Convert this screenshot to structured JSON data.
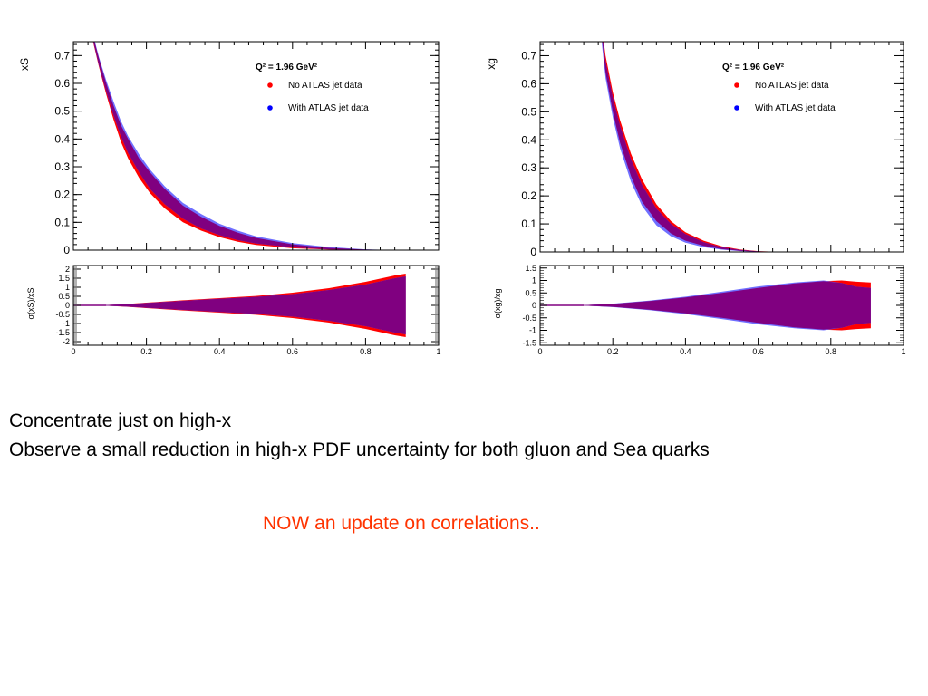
{
  "slide": {
    "line1": "Concentrate just on high-x",
    "line2": "Observe a small reduction in high-x PDF uncertainty for both gluon and Sea quarks",
    "note": "NOW an update on correlations..",
    "note_color": "#ff3300"
  },
  "colors": {
    "no_atlas": "#ff0000",
    "with_atlas": "#6f6fff",
    "overlap": "#800080"
  },
  "chart_data": [
    {
      "type": "area",
      "ylabel": "xS",
      "xlim": [
        0,
        1
      ],
      "ylim": [
        0,
        0.75
      ],
      "yticks": [
        "0",
        "0.1",
        "0.2",
        "0.3",
        "0.4",
        "0.5",
        "0.6",
        "0.7"
      ],
      "legend_title": "Q² = 1.96 GeV²",
      "legend_position": "top-right",
      "series": [
        {
          "name": "No ATLAS jet data",
          "color": "#ff0000",
          "x": [
            0.05,
            0.07,
            0.09,
            0.11,
            0.13,
            0.15,
            0.18,
            0.21,
            0.25,
            0.3,
            0.35,
            0.4,
            0.45,
            0.5,
            0.6,
            0.7,
            0.8,
            0.86
          ],
          "lower": [
            0.77,
            0.66,
            0.56,
            0.47,
            0.39,
            0.33,
            0.26,
            0.205,
            0.15,
            0.1,
            0.07,
            0.047,
            0.03,
            0.019,
            0.007,
            0.002,
            0.0003,
            0
          ],
          "upper": [
            0.79,
            0.69,
            0.6,
            0.52,
            0.45,
            0.4,
            0.33,
            0.28,
            0.22,
            0.16,
            0.12,
            0.087,
            0.063,
            0.044,
            0.021,
            0.008,
            0.002,
            0.0006
          ]
        },
        {
          "name": "With ATLAS jet data",
          "color": "#6f6fff",
          "x": [
            0.05,
            0.07,
            0.09,
            0.11,
            0.13,
            0.15,
            0.18,
            0.21,
            0.25,
            0.3,
            0.35,
            0.4,
            0.45,
            0.5,
            0.6,
            0.7,
            0.8,
            0.86
          ],
          "lower": [
            0.775,
            0.665,
            0.57,
            0.485,
            0.41,
            0.35,
            0.28,
            0.22,
            0.165,
            0.113,
            0.078,
            0.054,
            0.036,
            0.024,
            0.01,
            0.003,
            0.0006,
            0
          ],
          "upper": [
            0.795,
            0.695,
            0.61,
            0.535,
            0.465,
            0.41,
            0.345,
            0.29,
            0.23,
            0.17,
            0.13,
            0.095,
            0.07,
            0.05,
            0.025,
            0.011,
            0.003,
            0.0008
          ]
        }
      ],
      "ratio_panel": {
        "ylabel": "σ(xS)/xS",
        "ylim": [
          -2.2,
          2.2
        ],
        "yticks": [
          "-2",
          "-1.5",
          "-1",
          "-0.5",
          "0",
          "0.5",
          "1",
          "1.5",
          "2"
        ],
        "xticks": [
          "0",
          "0.2",
          "0.4",
          "0.6",
          "0.8",
          "1"
        ],
        "x": [
          0.09,
          0.15,
          0.2,
          0.3,
          0.4,
          0.5,
          0.6,
          0.7,
          0.8,
          0.88,
          0.91
        ],
        "no_atlas_band": [
          0.02,
          0.08,
          0.15,
          0.28,
          0.4,
          0.52,
          0.7,
          0.95,
          1.3,
          1.65,
          1.75
        ],
        "with_atlas_band": [
          0.02,
          0.07,
          0.13,
          0.25,
          0.36,
          0.47,
          0.62,
          0.85,
          1.15,
          1.5,
          1.6
        ]
      }
    },
    {
      "type": "area",
      "ylabel": "xg",
      "xlim": [
        0,
        1
      ],
      "ylim": [
        0,
        0.75
      ],
      "yticks": [
        "0",
        "0.1",
        "0.2",
        "0.3",
        "0.4",
        "0.5",
        "0.6",
        "0.7"
      ],
      "legend_title": "Q² = 1.96 GeV²",
      "legend_position": "top-right",
      "series": [
        {
          "name": "No ATLAS jet data",
          "color": "#ff0000",
          "x": [
            0.17,
            0.18,
            0.2,
            0.22,
            0.25,
            0.28,
            0.32,
            0.36,
            0.4,
            0.45,
            0.5,
            0.55,
            0.6,
            0.65,
            0.7
          ],
          "lower": [
            0.76,
            0.64,
            0.5,
            0.39,
            0.27,
            0.18,
            0.11,
            0.066,
            0.04,
            0.022,
            0.01,
            0.004,
            0.001,
            0.0002,
            0
          ],
          "upper": [
            0.8,
            0.7,
            0.57,
            0.47,
            0.35,
            0.26,
            0.17,
            0.11,
            0.07,
            0.04,
            0.02,
            0.009,
            0.003,
            0.001,
            0.0003
          ]
        },
        {
          "name": "With ATLAS jet data",
          "color": "#6f6fff",
          "x": [
            0.17,
            0.18,
            0.2,
            0.22,
            0.25,
            0.28,
            0.32,
            0.36,
            0.4,
            0.45,
            0.5,
            0.55,
            0.6,
            0.65,
            0.7
          ],
          "lower": [
            0.74,
            0.62,
            0.48,
            0.37,
            0.25,
            0.165,
            0.095,
            0.056,
            0.033,
            0.017,
            0.008,
            0.003,
            0.0008,
            0.0001,
            0
          ],
          "upper": [
            0.78,
            0.68,
            0.55,
            0.45,
            0.33,
            0.24,
            0.155,
            0.1,
            0.064,
            0.035,
            0.017,
            0.007,
            0.002,
            0.0006,
            0.0002
          ]
        }
      ],
      "ratio_panel": {
        "ylabel": "σ(xg)/xg",
        "ylim": [
          -1.6,
          1.6
        ],
        "yticks": [
          "-1.5",
          "-1",
          "-0.5",
          "0",
          "0.5",
          "1",
          "1.5"
        ],
        "xticks": [
          "0",
          "0.2",
          "0.4",
          "0.6",
          "0.8",
          "1"
        ],
        "x": [
          0.12,
          0.2,
          0.3,
          0.4,
          0.5,
          0.6,
          0.7,
          0.78,
          0.83,
          0.87,
          0.91
        ],
        "no_atlas_band": [
          0.01,
          0.06,
          0.17,
          0.32,
          0.5,
          0.7,
          0.88,
          0.97,
          1.0,
          0.95,
          0.92
        ],
        "with_atlas_band": [
          0.012,
          0.07,
          0.19,
          0.35,
          0.55,
          0.76,
          0.92,
          1.0,
          0.9,
          0.75,
          0.7
        ]
      }
    }
  ]
}
